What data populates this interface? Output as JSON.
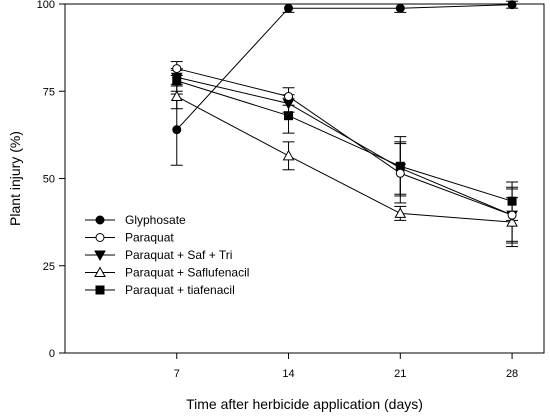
{
  "chart_data": {
    "type": "line",
    "xlabel": "Time after herbicide application (days)",
    "ylabel": "Plant injury (%)",
    "x": [
      7,
      14,
      21,
      28
    ],
    "xlim": [
      0,
      30
    ],
    "ylim": [
      0,
      100
    ],
    "xticks": [
      7,
      14,
      21,
      28
    ],
    "yticks": [
      0,
      25,
      50,
      75,
      100
    ],
    "grid": false,
    "legend_position": "bottom-left",
    "series": [
      {
        "name": "Glyphosate",
        "marker": "filled-circle",
        "values": [
          64,
          98.8,
          98.8,
          99.8
        ],
        "errors": [
          10.2,
          1.2,
          1.2,
          1.0
        ]
      },
      {
        "name": "Paraquat",
        "marker": "open-circle",
        "values": [
          81.5,
          73.5,
          51.5,
          39.5
        ],
        "errors": [
          2.0,
          2.5,
          8.5,
          7.5
        ]
      },
      {
        "name": "Paraquat + Saf + Tri",
        "marker": "filled-triangle-down",
        "values": [
          79,
          71.5,
          53,
          39.5
        ],
        "errors": [
          2.5,
          2.5,
          7.5,
          8.0
        ]
      },
      {
        "name": "Paraquat + Saflufenacil",
        "marker": "open-triangle-up",
        "values": [
          73.5,
          56.5,
          40,
          37.5
        ],
        "errors": [
          3.5,
          4.0,
          2.0,
          7.0
        ]
      },
      {
        "name": "Paraquat + tiafenacil",
        "marker": "filled-square",
        "values": [
          78,
          68,
          53.5,
          43.5
        ],
        "errors": [
          3.0,
          5.0,
          8.5,
          5.5
        ]
      }
    ]
  }
}
